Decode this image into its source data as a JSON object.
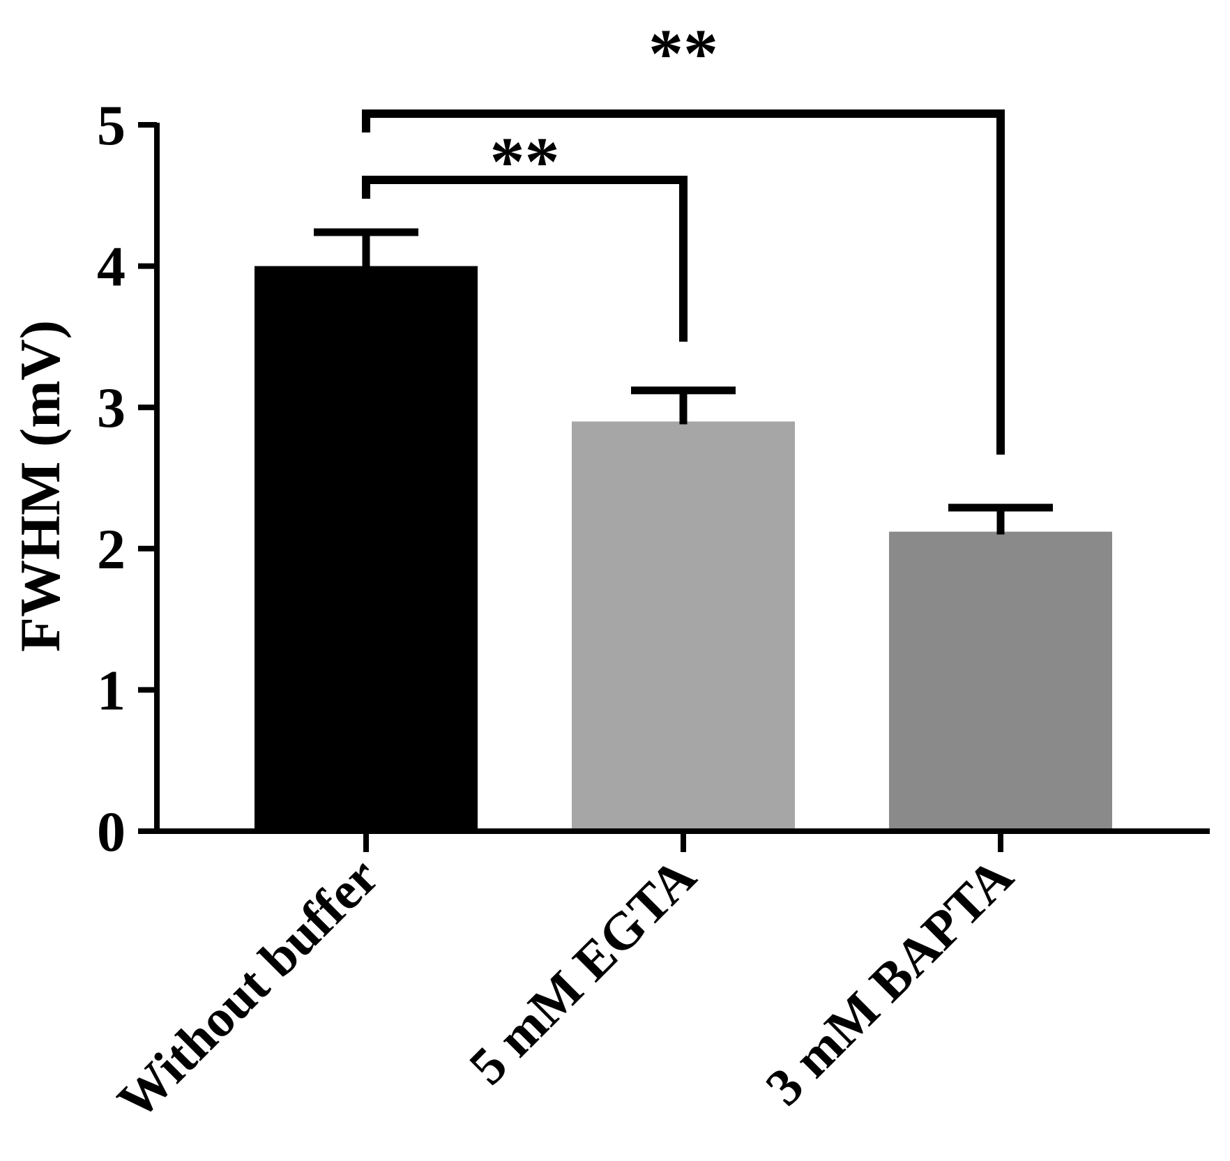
{
  "chart_data": {
    "type": "bar",
    "ylabel": "FWHM (mV)",
    "xlabel": "",
    "ylim": [
      0,
      5
    ],
    "yticks": [
      0,
      1,
      2,
      3,
      4,
      5
    ],
    "ytick_labels": [
      "0",
      "1",
      "2",
      "3",
      "4",
      "5"
    ],
    "categories": [
      "Without buffer",
      "5 mM EGTA",
      "3 mM BAPTA"
    ],
    "values": [
      4.0,
      2.9,
      2.12
    ],
    "errors": [
      0.24,
      0.22,
      0.17
    ],
    "colors": [
      "#000000",
      "#a6a6a6",
      "#8a8a8a"
    ],
    "significance": [
      {
        "from": 0,
        "to": 1,
        "label": "**"
      },
      {
        "from": 0,
        "to": 2,
        "label": "**"
      }
    ]
  }
}
